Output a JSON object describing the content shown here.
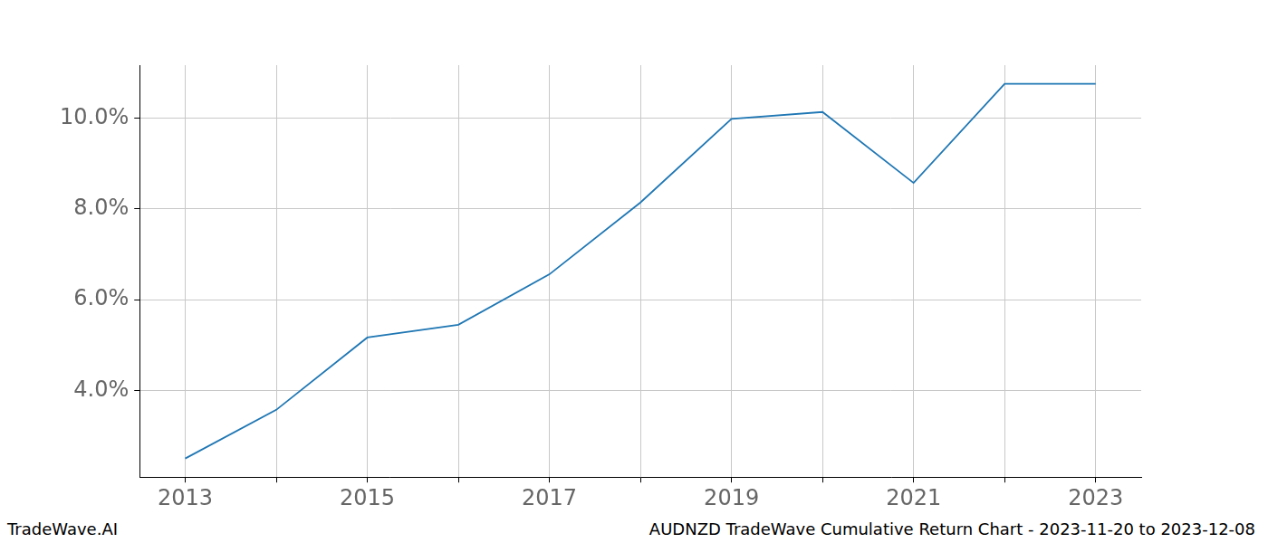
{
  "chart_data": {
    "type": "line",
    "categories": [
      "2013",
      null,
      "2015",
      null,
      "2017",
      null,
      "2019",
      null,
      "2021",
      null,
      "2023"
    ],
    "values": [
      2.51,
      3.58,
      5.17,
      5.45,
      6.56,
      8.14,
      9.98,
      10.13,
      8.57,
      10.75,
      10.75
    ],
    "color": "#1f77b4",
    "ylim": [
      2.1,
      11.16
    ],
    "yticks": [
      {
        "value": 4,
        "label": "4.0%"
      },
      {
        "value": 6,
        "label": "6.0%"
      },
      {
        "value": 8,
        "label": "8.0%"
      },
      {
        "value": 10,
        "label": "10.0%"
      }
    ],
    "grid": true,
    "annotations": [
      "TradeWave.AI",
      "AUDNZD TradeWave Cumulative Return Chart - 2023-11-20 to 2023-12-08"
    ]
  }
}
